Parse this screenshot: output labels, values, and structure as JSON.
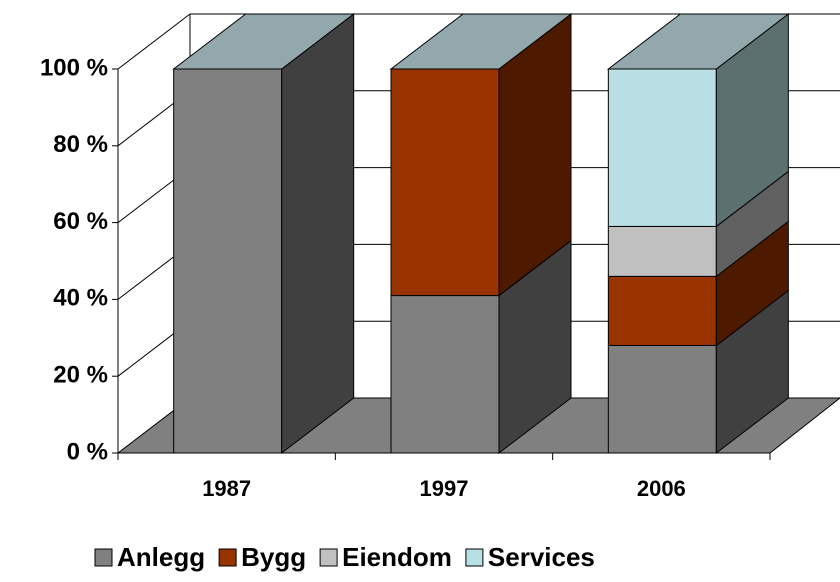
{
  "chart_data": {
    "type": "bar",
    "stacked": true,
    "categories": [
      "1987",
      "1997",
      "2006"
    ],
    "series": [
      {
        "name": "Anlegg",
        "color": "#808080",
        "side_color": "#404040",
        "values": [
          100,
          41,
          28
        ]
      },
      {
        "name": "Bygg",
        "color": "#993300",
        "side_color": "#4d1a00",
        "values": [
          0,
          59,
          18
        ]
      },
      {
        "name": "Eiendom",
        "color": "#c0c0c0",
        "side_color": "#606060",
        "values": [
          0,
          0,
          13
        ]
      },
      {
        "name": "Services",
        "color": "#b8e0e4",
        "side_color": "#5c7070",
        "values": [
          0,
          0,
          41
        ]
      }
    ],
    "ylim": [
      0,
      100
    ],
    "yticks": [
      {
        "value": 0,
        "label": "0 %"
      },
      {
        "value": 20,
        "label": "20 %"
      },
      {
        "value": 40,
        "label": "40 %"
      },
      {
        "value": 60,
        "label": "60 %"
      },
      {
        "value": 80,
        "label": "80 %"
      },
      {
        "value": 100,
        "label": "100 %"
      }
    ],
    "grid": true,
    "legend": "bottom"
  }
}
